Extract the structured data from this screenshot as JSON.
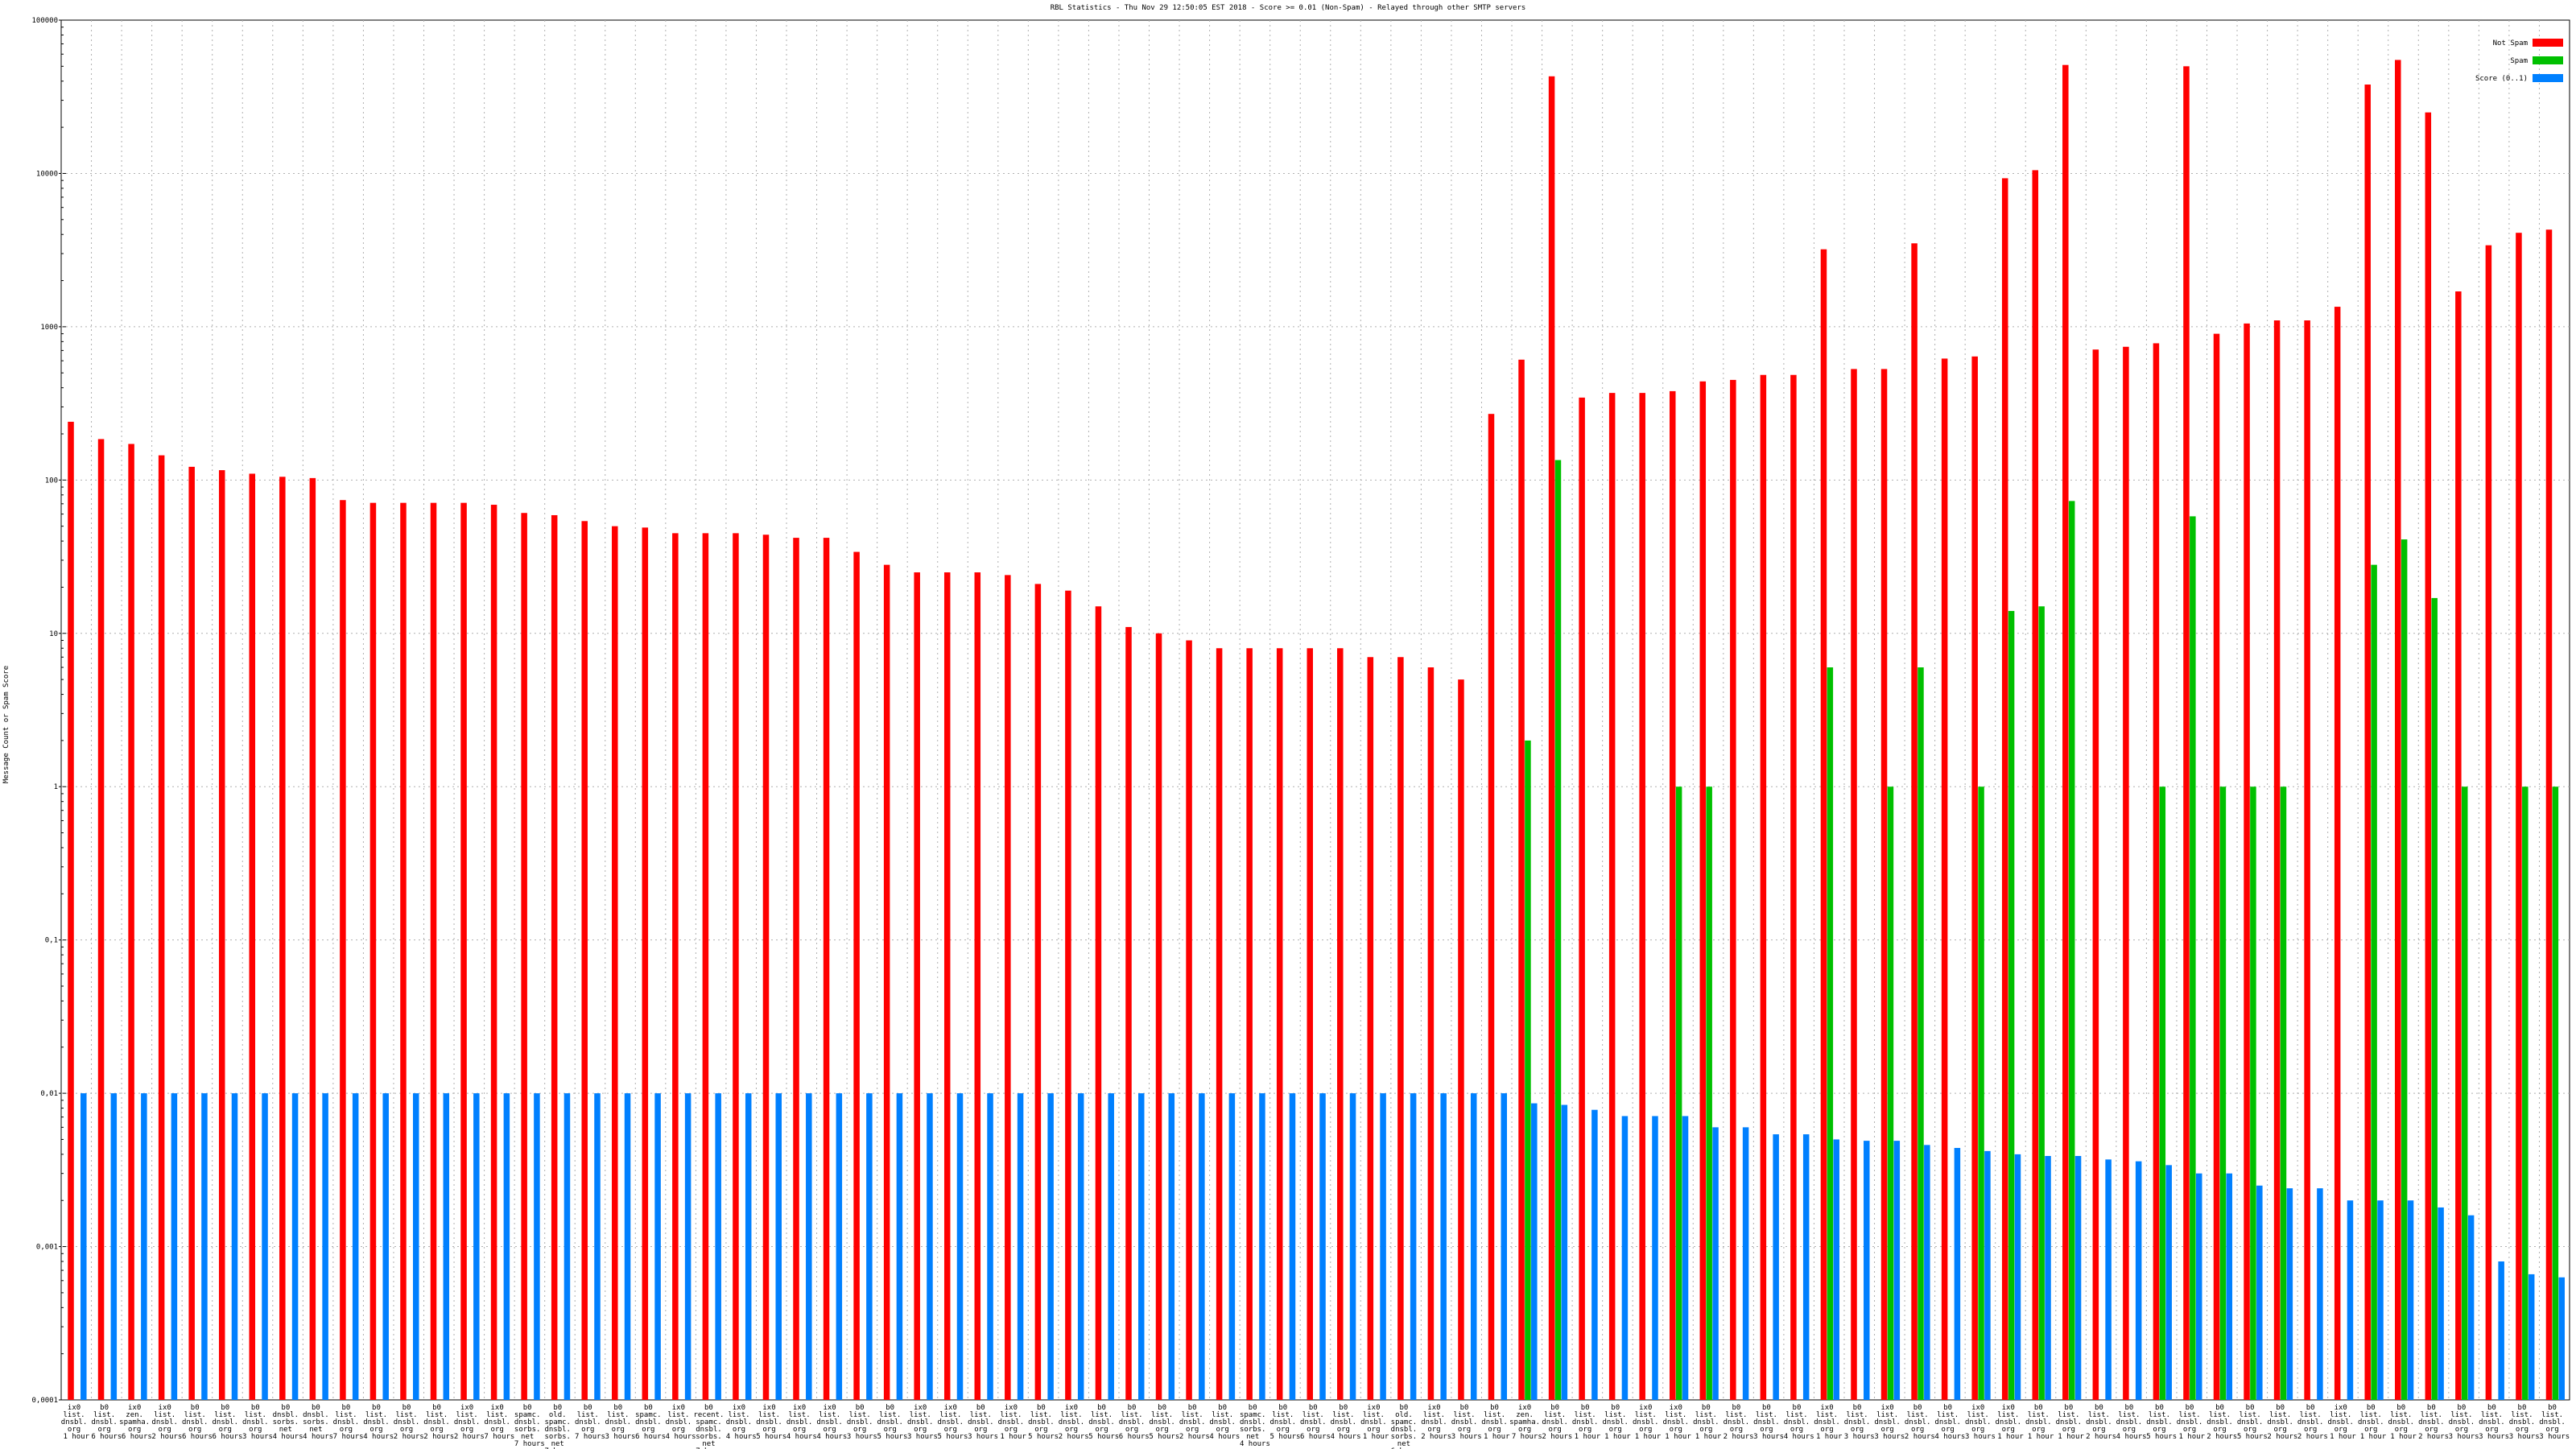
{
  "chart_data": {
    "type": "bar",
    "title": "RBL Statistics - Thu Nov 29 12:50:05 EST 2018 - Score >= 0.01 (Non-Spam) - Relayed through other SMTP servers",
    "y_label": "Message Count or Spam Score",
    "log_scale": true,
    "grid": true,
    "legend_position": "upper right",
    "ylim": [
      0.0001,
      100000
    ],
    "yticks": [
      {
        "value": 0.0001,
        "label": "0,0001"
      },
      {
        "value": 0.001,
        "label": "0,001"
      },
      {
        "value": 0.01,
        "label": "0,01"
      },
      {
        "value": 0.1,
        "label": "0,1"
      },
      1,
      10,
      100,
      1000,
      10000,
      100000
    ],
    "categories": [
      "ix0 list. dnsbl. org 1 hour",
      "b0 list. dnsbl. org 6 hours",
      "ix0 zen. spamha. org 6 hours",
      "ix0 list. dnsbl. org 2 hours",
      "b0 list. dnsbl. org 6 hours",
      "b0 list. dnsbl. org 6 hours",
      "b0 list. dnsbl. org 3 hours",
      "b0 dnsbl. sorbs. net 4 hours",
      "b0 dnsbl. sorbs. net 4 hours",
      "b0 list. dnsbl. org 7 hours",
      "b0 list. dnsbl. org 4 hours",
      "b0 list. dnsbl. org 2 hours",
      "b0 list. dnsbl. org 2 hours",
      "ix0 list. dnsbl. org 2 hours",
      "ix0 list. dnsbl. org 7 hours",
      "b0 spamc. dnsbl. sorbs. net 7 hours",
      "b0 old. spamc. dnsbl. sorbs. net 7 hours",
      "b0 list. dnsbl. org 7 hours",
      "b0 list. dnsbl. org 3 hours",
      "b0 spamc. dnsbl. org 6 hours",
      "ix0 list. dnsbl. org 4 hours",
      "b0 recent. spamc. dnsbl. sorbs. net 7 hours",
      "ix0 list. dnsbl. org 4 hours",
      "ix0 list. dnsbl. org 5 hours",
      "ix0 list. dnsbl. org 4 hours",
      "ix0 list. dnsbl. org 4 hours",
      "b0 list. dnsbl. org 3 hours",
      "b0 list. dnsbl. org 5 hours",
      "ix0 list. dnsbl. org 3 hours",
      "ix0 list. dnsbl. org 5 hours",
      "b0 list. dnsbl. org 3 hours",
      "ix0 list. dnsbl. org 1 hour",
      "b0 list. dnsbl. org 5 hours",
      "ix0 list. dnsbl. org 2 hours",
      "b0 list. dnsbl. org 5 hours",
      "b0 list. dnsbl. org 6 hours",
      "b0 list. dnsbl. org 5 hours",
      "b0 list. dnsbl. org 2 hours",
      "b0 list. dnsbl. org 4 hours",
      "b0 spamc. dnsbl. sorbs. net 4 hours",
      "b0 list. dnsbl. org 5 hours",
      "b0 list. dnsbl. org 6 hours",
      "b0 list. dnsbl. org 4 hours",
      "ix0 list. dnsbl. org 1 hour",
      "b0 old. spamc. dnsbl. sorbs. net 6 hours",
      "ix0 list. dnsbl. org 2 hours",
      "b0 list. dnsbl. org 3 hours",
      "b0 list. dnsbl. org 1 hour",
      "ix0 zen. spamha. org 7 hours",
      "b0 list. dnsbl. org 2 hours",
      "b0 list. dnsbl. org 1 hour",
      "b0 list. dnsbl. org 1 hour",
      "ix0 list. dnsbl. org 1 hour",
      "ix0 list. dnsbl. org 1 hour",
      "b0 list. dnsbl. org 1 hour",
      "b0 list. dnsbl. org 2 hours",
      "b0 list. dnsbl. org 3 hours",
      "b0 list. dnsbl. org 4 hours",
      "ix0 list. dnsbl. org 1 hour",
      "b0 list. dnsbl. org 3 hours",
      "ix0 list. dnsbl. org 3 hours",
      "b0 list. dnsbl. org 2 hours",
      "b0 list. dnsbl. org 4 hours",
      "ix0 list. dnsbl. org 3 hours",
      "ix0 list. dnsbl. org 1 hour",
      "b0 list. dnsbl. org 1 hour",
      "b0 list. dnsbl. org 1 hour",
      "b0 list. dnsbl. org 2 hours",
      "b0 list. dnsbl. org 4 hours",
      "b0 list. dnsbl. org 5 hours",
      "b0 list. dnsbl. org 1 hour",
      "b0 list. dnsbl. org 2 hours",
      "b0 list. dnsbl. org 5 hours",
      "b0 list. dnsbl. org 2 hours",
      "b0 list. dnsbl. org 2 hours",
      "ix0 list. dnsbl. org 1 hour",
      "b0 list. dnsbl. org 1 hour",
      "b0 list. dnsbl. org 1 hour",
      "b0 list. dnsbl. org 2 hours",
      "b0 list. dnsbl. org 3 hours",
      "b0 list. dnsbl. org 3 hours",
      "b0 list. dnsbl. org 3 hours",
      "b0 list. dnsbl. org 3 hours"
    ],
    "series": [
      {
        "name": "Not Spam",
        "color": "#ff0000",
        "values": [
          240,
          185,
          172,
          145,
          122,
          116,
          110,
          105,
          103,
          74,
          71,
          71,
          71,
          71,
          69,
          61,
          59,
          54,
          50,
          49,
          45,
          45,
          45,
          44,
          42,
          42,
          34,
          28,
          25,
          25,
          25,
          24,
          21,
          19,
          15,
          11,
          10,
          9,
          8,
          8,
          8,
          8,
          8,
          7,
          7,
          6,
          5,
          270,
          610,
          43000,
          345,
          370,
          370,
          380,
          440,
          450,
          485,
          485,
          3200,
          530,
          530,
          3500,
          620,
          640,
          9300,
          10500,
          51000,
          710,
          740,
          780,
          50000,
          900,
          1050,
          1100,
          1100,
          1350,
          38000,
          55000,
          25000,
          1700,
          3400,
          4100,
          4300
        ]
      },
      {
        "name": "Spam",
        "color": "#00c000",
        "values": [
          0,
          0,
          0,
          0,
          0,
          0,
          0,
          0,
          0,
          0,
          0,
          0,
          0,
          0,
          0,
          0,
          0,
          0,
          0,
          0,
          0,
          0,
          0,
          0,
          0,
          0,
          0,
          0,
          0,
          0,
          0,
          0,
          0,
          0,
          0,
          0,
          0,
          0,
          0,
          0,
          0,
          0,
          0,
          0,
          0,
          0,
          0,
          0,
          2,
          135,
          0,
          0,
          0,
          1,
          1,
          0,
          0,
          0,
          6,
          0,
          1,
          6,
          0,
          1,
          14,
          15,
          73,
          0,
          0,
          1,
          58,
          1,
          1,
          1,
          0,
          0,
          28,
          41,
          17,
          1,
          0,
          1,
          1
        ]
      },
      {
        "name": "Score (0..1)",
        "color": "#0080ff",
        "values": [
          0.01,
          0.01,
          0.01,
          0.01,
          0.01,
          0.01,
          0.01,
          0.01,
          0.01,
          0.01,
          0.01,
          0.01,
          0.01,
          0.01,
          0.01,
          0.01,
          0.01,
          0.01,
          0.01,
          0.01,
          0.01,
          0.01,
          0.01,
          0.01,
          0.01,
          0.01,
          0.01,
          0.01,
          0.01,
          0.01,
          0.01,
          0.01,
          0.01,
          0.01,
          0.01,
          0.01,
          0.01,
          0.01,
          0.01,
          0.01,
          0.01,
          0.01,
          0.01,
          0.01,
          0.01,
          0.01,
          0.01,
          0.01,
          0.0086,
          0.0084,
          0.0078,
          0.0071,
          0.0071,
          0.0071,
          0.006,
          0.006,
          0.0054,
          0.0054,
          0.005,
          0.0049,
          0.0049,
          0.0046,
          0.0044,
          0.0042,
          0.004,
          0.0039,
          0.0039,
          0.0037,
          0.0036,
          0.0034,
          0.003,
          0.003,
          0.0025,
          0.0024,
          0.0024,
          0.002,
          0.002,
          0.002,
          0.0018,
          0.0016,
          0.0008,
          0.00066,
          0.00063
        ]
      }
    ]
  }
}
